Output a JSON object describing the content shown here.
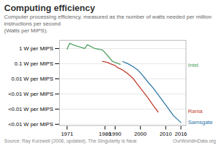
{
  "chart_data": {
    "type": "line",
    "title": "Computing efficiency",
    "subtitle": "Computer processing efficiency, measured as the number of watts needed per million instructions per second\n(Watts per MIPS).",
    "source": "Source: Ray Kurzweil (2006, updated). The Singularity is Near.",
    "credit": "OurWorldInData.org",
    "log": "y",
    "grid": "y",
    "xlim": [
      1968,
      2018
    ],
    "xticks": [
      1971,
      1986,
      1990,
      2000,
      2010,
      2016
    ],
    "ylim": [
      8e-06,
      3.5
    ],
    "yticks": [
      {
        "value": 1,
        "label": "1 W per MIPS"
      },
      {
        "value": 0.1,
        "label": "0.1 W per MIPS"
      },
      {
        "value": 0.01,
        "label": "0.01 W per MIPS"
      },
      {
        "value": 0.001,
        "label": "<0.01 W per MIPS"
      },
      {
        "value": 0.0001,
        "label": "<0.01 W per MIPS"
      },
      {
        "value": 1e-05,
        "label": "<0.01 W per MIPS"
      }
    ],
    "series": [
      {
        "name": "Intel",
        "color": "#4a9e5c",
        "x": [
          1971,
          1972,
          1974,
          1978,
          1979,
          1982,
          1985,
          1987,
          1989,
          1992
        ],
        "values": [
          0.9,
          2.2,
          1.6,
          1.0,
          1.8,
          1.0,
          0.8,
          0.35,
          0.14,
          0.09
        ]
      },
      {
        "name": "Rania",
        "color": "#c0392b",
        "x": [
          1985,
          1987,
          1988,
          1990,
          1991,
          1993,
          1995,
          1997,
          1999,
          2001,
          2003,
          2005,
          2007
        ],
        "values": [
          0.14,
          0.12,
          0.1,
          0.075,
          0.055,
          0.038,
          0.022,
          0.011,
          0.004,
          0.0015,
          0.00055,
          0.00018,
          6.5e-05
        ]
      },
      {
        "name": "Samsgate",
        "color": "#2471a3",
        "x": [
          1993,
          1995,
          1997,
          1999,
          2001,
          2003,
          2005,
          2007,
          2009,
          2011,
          2013,
          2016
        ],
        "values": [
          0.14,
          0.1,
          0.065,
          0.038,
          0.016,
          0.006,
          0.0025,
          0.0009,
          0.00032,
          0.00011,
          3.8e-05,
          1.3e-05
        ]
      }
    ],
    "annotations": [
      {
        "text": "Intel",
        "x": 2018,
        "y": 0.085,
        "color": "#4a9e5c"
      },
      {
        "text": "Rania",
        "x": 2018,
        "y": 7.5e-05,
        "color": "#c0392b"
      },
      {
        "text": "Samsgate",
        "x": 2018,
        "y": 1.3e-05,
        "color": "#2471a3"
      }
    ]
  }
}
